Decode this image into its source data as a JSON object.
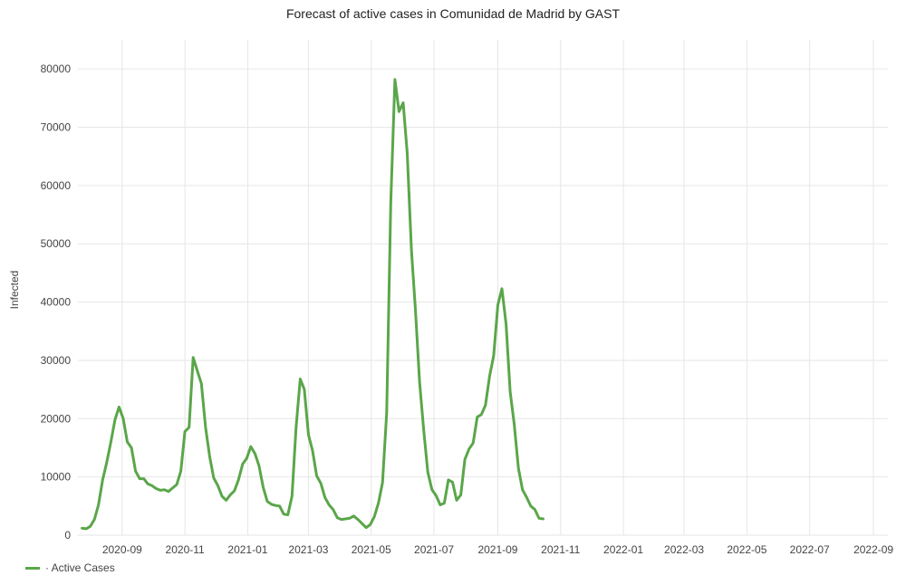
{
  "chart_data": {
    "type": "line",
    "title": "Forecast of active cases in Comunidad de Madrid by GAST",
    "ylabel": "Infected",
    "xlabel": "",
    "ylim": [
      0,
      85000
    ],
    "yticks": [
      0,
      10000,
      20000,
      30000,
      40000,
      50000,
      60000,
      70000,
      80000
    ],
    "xlim": [
      "2020-07-20",
      "2022-09-15"
    ],
    "xticks": [
      "2020-09",
      "2020-11",
      "2021-01",
      "2021-03",
      "2021-05",
      "2021-07",
      "2021-09",
      "2021-11",
      "2022-01",
      "2022-03",
      "2022-05",
      "2022-07",
      "2022-09"
    ],
    "grid": true,
    "legend": "bottom-left",
    "colors": {
      "line": "#5aa64a"
    },
    "series": [
      {
        "name": "· Active Cases",
        "points": [
          [
            "2020-07-24",
            1200
          ],
          [
            "2020-07-28",
            1100
          ],
          [
            "2020-08-01",
            1500
          ],
          [
            "2020-08-05",
            2700
          ],
          [
            "2020-08-09",
            5200
          ],
          [
            "2020-08-13",
            9500
          ],
          [
            "2020-08-17",
            12500
          ],
          [
            "2020-08-21",
            16000
          ],
          [
            "2020-08-25",
            19800
          ],
          [
            "2020-08-29",
            22000
          ],
          [
            "2020-09-02",
            20000
          ],
          [
            "2020-09-06",
            16000
          ],
          [
            "2020-09-10",
            15000
          ],
          [
            "2020-09-14",
            11000
          ],
          [
            "2020-09-18",
            9700
          ],
          [
            "2020-09-22",
            9700
          ],
          [
            "2020-09-26",
            8800
          ],
          [
            "2020-09-30",
            8500
          ],
          [
            "2020-10-04",
            8000
          ],
          [
            "2020-10-08",
            7700
          ],
          [
            "2020-10-12",
            7800
          ],
          [
            "2020-10-16",
            7500
          ],
          [
            "2020-10-20",
            8100
          ],
          [
            "2020-10-24",
            8700
          ],
          [
            "2020-10-28",
            11000
          ],
          [
            "2020-11-01",
            17800
          ],
          [
            "2020-11-05",
            18500
          ],
          [
            "2020-11-09",
            30500
          ],
          [
            "2020-11-13",
            28200
          ],
          [
            "2020-11-17",
            26000
          ],
          [
            "2020-11-21",
            18500
          ],
          [
            "2020-11-25",
            13500
          ],
          [
            "2020-11-29",
            9800
          ],
          [
            "2020-12-03",
            8500
          ],
          [
            "2020-12-07",
            6700
          ],
          [
            "2020-12-11",
            6000
          ],
          [
            "2020-12-15",
            6900
          ],
          [
            "2020-12-19",
            7600
          ],
          [
            "2020-12-23",
            9500
          ],
          [
            "2020-12-27",
            12200
          ],
          [
            "2020-12-31",
            13200
          ],
          [
            "2021-01-04",
            15200
          ],
          [
            "2021-01-08",
            14000
          ],
          [
            "2021-01-12",
            11900
          ],
          [
            "2021-01-16",
            8200
          ],
          [
            "2021-01-20",
            5800
          ],
          [
            "2021-01-24",
            5300
          ],
          [
            "2021-01-28",
            5100
          ],
          [
            "2021-02-01",
            5000
          ],
          [
            "2021-02-05",
            3600
          ],
          [
            "2021-02-09",
            3500
          ],
          [
            "2021-02-13",
            6700
          ],
          [
            "2021-02-17",
            18500
          ],
          [
            "2021-02-21",
            26800
          ],
          [
            "2021-02-25",
            25000
          ],
          [
            "2021-03-01",
            17200
          ],
          [
            "2021-03-05",
            14500
          ],
          [
            "2021-03-09",
            10200
          ],
          [
            "2021-03-13",
            8900
          ],
          [
            "2021-03-17",
            6500
          ],
          [
            "2021-03-21",
            5200
          ],
          [
            "2021-03-25",
            4400
          ],
          [
            "2021-03-29",
            3000
          ],
          [
            "2021-04-02",
            2700
          ],
          [
            "2021-04-06",
            2800
          ],
          [
            "2021-04-10",
            2900
          ],
          [
            "2021-04-14",
            3300
          ],
          [
            "2021-04-18",
            2700
          ],
          [
            "2021-04-22",
            2000
          ],
          [
            "2021-04-26",
            1300
          ],
          [
            "2021-04-30",
            1800
          ],
          [
            "2021-05-04",
            3200
          ],
          [
            "2021-05-08",
            5500
          ],
          [
            "2021-05-12",
            9000
          ],
          [
            "2021-05-16",
            21000
          ],
          [
            "2021-05-20",
            57000
          ],
          [
            "2021-05-24",
            78200
          ],
          [
            "2021-05-28",
            72700
          ],
          [
            "2021-06-01",
            74200
          ],
          [
            "2021-06-05",
            65500
          ],
          [
            "2021-06-09",
            49000
          ],
          [
            "2021-06-13",
            38500
          ],
          [
            "2021-06-17",
            26300
          ],
          [
            "2021-06-21",
            18000
          ],
          [
            "2021-06-25",
            10800
          ],
          [
            "2021-06-29",
            7800
          ],
          [
            "2021-07-03",
            6800
          ],
          [
            "2021-07-07",
            5200
          ],
          [
            "2021-07-11",
            5500
          ],
          [
            "2021-07-15",
            9500
          ],
          [
            "2021-07-19",
            9100
          ],
          [
            "2021-07-23",
            6000
          ],
          [
            "2021-07-27",
            6900
          ],
          [
            "2021-07-31",
            13000
          ],
          [
            "2021-08-04",
            14800
          ],
          [
            "2021-08-08",
            15800
          ],
          [
            "2021-08-12",
            20300
          ],
          [
            "2021-08-16",
            20700
          ],
          [
            "2021-08-20",
            22300
          ],
          [
            "2021-08-24",
            27300
          ],
          [
            "2021-08-28",
            30800
          ],
          [
            "2021-09-01",
            39500
          ],
          [
            "2021-09-05",
            42300
          ],
          [
            "2021-09-09",
            36200
          ],
          [
            "2021-09-13",
            24600
          ],
          [
            "2021-09-17",
            19000
          ],
          [
            "2021-09-21",
            11500
          ],
          [
            "2021-09-25",
            7800
          ],
          [
            "2021-09-29",
            6500
          ],
          [
            "2021-10-03",
            5000
          ],
          [
            "2021-10-07",
            4400
          ],
          [
            "2021-10-11",
            2900
          ],
          [
            "2021-10-15",
            2800
          ]
        ]
      }
    ]
  }
}
